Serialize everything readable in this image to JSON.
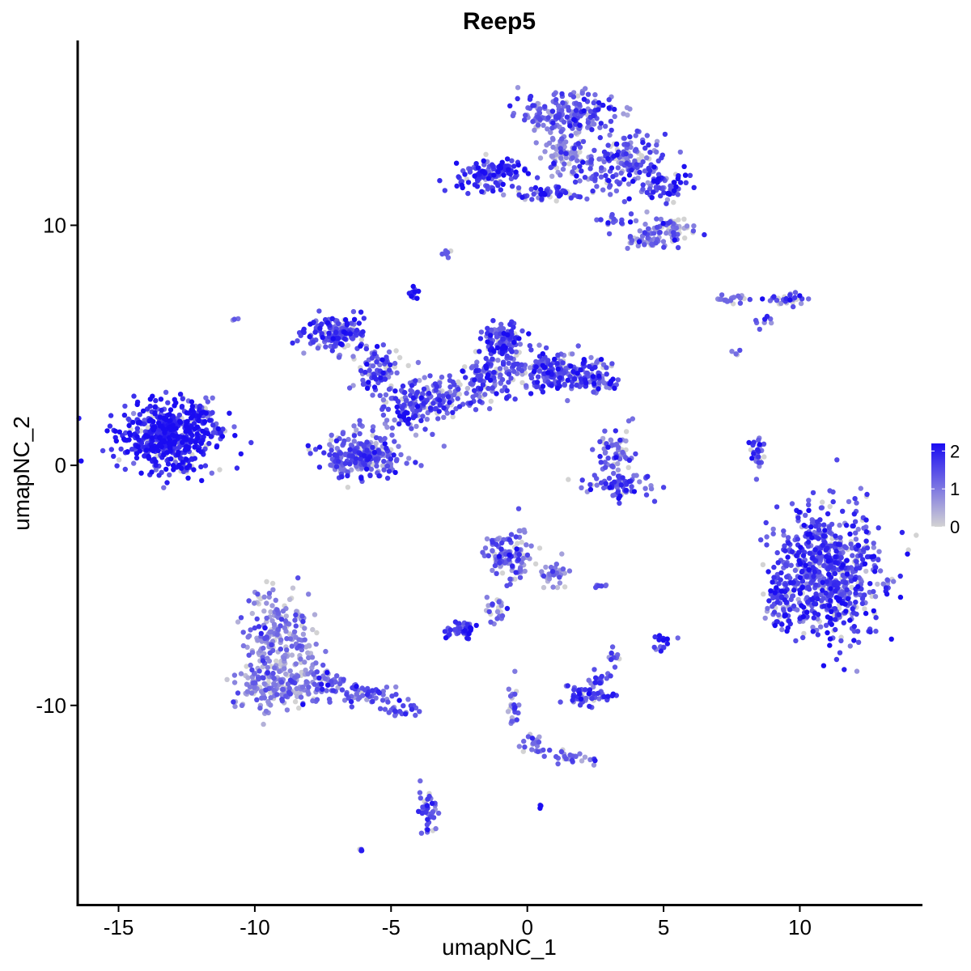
{
  "chart_data": {
    "type": "scatter",
    "title": "Reep5",
    "xlabel": "umapNC_1",
    "ylabel": "umapNC_2",
    "xlim": [
      -16.5,
      14.5
    ],
    "ylim": [
      -18.3,
      17.7
    ],
    "x_ticks": [
      -15,
      -10,
      -5,
      0,
      5,
      10
    ],
    "x_tick_labels": [
      "-15",
      "-10",
      "-5",
      "0",
      "5",
      "10"
    ],
    "y_ticks": [
      -10,
      0,
      10
    ],
    "y_tick_labels": [
      "-10",
      "0",
      "10"
    ],
    "grid": false,
    "legend": {
      "position": "right",
      "type": "colorbar",
      "min": 0,
      "max": 2.2,
      "ticks": [
        0,
        1,
        2
      ],
      "tick_labels": [
        "0",
        "1",
        "2"
      ],
      "color_low": "#d3d3d3",
      "color_high": "#1a0cf2"
    },
    "clusters": [
      {
        "cx": -13.2,
        "cy": 1.2,
        "rx": 1.7,
        "ry": 1.2,
        "n": 520,
        "expr": 1.9
      },
      {
        "cx": -12.0,
        "cy": 2.1,
        "rx": 0.5,
        "ry": 0.6,
        "n": 40,
        "expr": 1.6
      },
      {
        "cx": -11.3,
        "cy": 1.4,
        "rx": 0.4,
        "ry": 0.2,
        "n": 12,
        "expr": 1.5
      },
      {
        "cx": -12.6,
        "cy": -0.1,
        "rx": 0.4,
        "ry": 0.25,
        "n": 14,
        "expr": 1.6
      },
      {
        "cx": -7.0,
        "cy": 5.5,
        "rx": 1.0,
        "ry": 0.7,
        "n": 150,
        "expr": 1.5
      },
      {
        "cx": -5.5,
        "cy": 4.0,
        "rx": 0.8,
        "ry": 0.9,
        "n": 80,
        "expr": 1.4
      },
      {
        "cx": -4.2,
        "cy": 7.2,
        "rx": 0.2,
        "ry": 0.25,
        "n": 15,
        "expr": 1.8
      },
      {
        "cx": -4.5,
        "cy": 2.5,
        "rx": 1.0,
        "ry": 1.0,
        "n": 110,
        "expr": 1.4
      },
      {
        "cx": -6.0,
        "cy": 0.4,
        "rx": 1.4,
        "ry": 0.9,
        "n": 260,
        "expr": 1.3
      },
      {
        "cx": -3.2,
        "cy": 2.8,
        "rx": 1.0,
        "ry": 0.8,
        "n": 90,
        "expr": 1.4
      },
      {
        "cx": -1.5,
        "cy": 3.6,
        "rx": 0.8,
        "ry": 0.9,
        "n": 110,
        "expr": 1.4
      },
      {
        "cx": -0.9,
        "cy": 5.1,
        "rx": 0.7,
        "ry": 0.8,
        "n": 120,
        "expr": 1.6
      },
      {
        "cx": 1.0,
        "cy": 3.9,
        "rx": 1.4,
        "ry": 0.7,
        "n": 180,
        "expr": 1.5
      },
      {
        "cx": 2.6,
        "cy": 3.7,
        "rx": 0.8,
        "ry": 0.55,
        "n": 70,
        "expr": 1.4
      },
      {
        "cx": -1.3,
        "cy": 12.1,
        "rx": 1.3,
        "ry": 0.6,
        "n": 130,
        "expr": 1.7
      },
      {
        "cx": 0.8,
        "cy": 11.3,
        "rx": 1.5,
        "ry": 0.3,
        "n": 50,
        "expr": 1.5
      },
      {
        "cx": 1.5,
        "cy": 14.6,
        "rx": 1.6,
        "ry": 0.9,
        "n": 200,
        "expr": 1.2
      },
      {
        "cx": 1.3,
        "cy": 13.0,
        "rx": 0.6,
        "ry": 0.9,
        "n": 60,
        "expr": 1.0
      },
      {
        "cx": 3.4,
        "cy": 12.6,
        "rx": 1.5,
        "ry": 1.0,
        "n": 180,
        "expr": 1.3
      },
      {
        "cx": 5.2,
        "cy": 11.6,
        "rx": 0.8,
        "ry": 0.6,
        "n": 60,
        "expr": 1.7
      },
      {
        "cx": 5.2,
        "cy": 9.8,
        "rx": 0.9,
        "ry": 0.5,
        "n": 70,
        "expr": 1.1
      },
      {
        "cx": 4.5,
        "cy": 9.3,
        "rx": 0.8,
        "ry": 0.3,
        "n": 30,
        "expr": 1.0
      },
      {
        "cx": 3.2,
        "cy": 10.2,
        "rx": 0.8,
        "ry": 0.2,
        "n": 18,
        "expr": 1.4
      },
      {
        "cx": -2.9,
        "cy": 8.8,
        "rx": 0.15,
        "ry": 0.15,
        "n": 6,
        "expr": 1.4
      },
      {
        "cx": 7.6,
        "cy": 6.9,
        "rx": 0.8,
        "ry": 0.2,
        "n": 20,
        "expr": 1.0
      },
      {
        "cx": 9.5,
        "cy": 6.9,
        "rx": 0.6,
        "ry": 0.3,
        "n": 30,
        "expr": 1.5
      },
      {
        "cx": 8.7,
        "cy": 6.0,
        "rx": 0.3,
        "ry": 0.2,
        "n": 8,
        "expr": 1.0
      },
      {
        "cx": 3.2,
        "cy": 0.5,
        "rx": 0.6,
        "ry": 0.9,
        "n": 60,
        "expr": 1.2
      },
      {
        "cx": 3.3,
        "cy": -0.8,
        "rx": 1.1,
        "ry": 0.5,
        "n": 70,
        "expr": 1.4
      },
      {
        "cx": 8.4,
        "cy": 0.5,
        "rx": 0.3,
        "ry": 0.9,
        "n": 30,
        "expr": 1.5
      },
      {
        "cx": 11.0,
        "cy": -4.5,
        "rx": 1.8,
        "ry": 2.4,
        "n": 700,
        "expr": 1.5
      },
      {
        "cx": 9.3,
        "cy": -5.6,
        "rx": 0.5,
        "ry": 1.0,
        "n": 60,
        "expr": 1.5
      },
      {
        "cx": -9.1,
        "cy": -7.2,
        "rx": 1.1,
        "ry": 1.8,
        "n": 220,
        "expr": 0.9
      },
      {
        "cx": -9.3,
        "cy": -9.3,
        "rx": 1.3,
        "ry": 0.9,
        "n": 170,
        "expr": 0.9
      },
      {
        "cx": -7.4,
        "cy": -9.0,
        "rx": 0.7,
        "ry": 0.6,
        "n": 50,
        "expr": 1.1
      },
      {
        "cx": -6.0,
        "cy": -9.5,
        "rx": 0.9,
        "ry": 0.4,
        "n": 50,
        "expr": 1.4
      },
      {
        "cx": -4.5,
        "cy": -10.2,
        "rx": 0.7,
        "ry": 0.3,
        "n": 25,
        "expr": 1.4
      },
      {
        "cx": -3.6,
        "cy": -14.5,
        "rx": 0.3,
        "ry": 1.0,
        "n": 40,
        "expr": 1.4
      },
      {
        "cx": -0.7,
        "cy": -3.7,
        "rx": 0.8,
        "ry": 0.9,
        "n": 110,
        "expr": 1.1
      },
      {
        "cx": 1.0,
        "cy": -4.6,
        "rx": 0.4,
        "ry": 0.5,
        "n": 30,
        "expr": 1.0
      },
      {
        "cx": -1.1,
        "cy": -6.0,
        "rx": 0.4,
        "ry": 0.6,
        "n": 25,
        "expr": 1.2
      },
      {
        "cx": -2.4,
        "cy": -6.9,
        "rx": 0.5,
        "ry": 0.3,
        "n": 40,
        "expr": 1.6
      },
      {
        "cx": 2.3,
        "cy": -9.6,
        "rx": 0.8,
        "ry": 0.4,
        "n": 55,
        "expr": 1.6
      },
      {
        "cx": 2.6,
        "cy": -8.8,
        "rx": 0.4,
        "ry": 0.4,
        "n": 15,
        "expr": 1.5
      },
      {
        "cx": 3.2,
        "cy": -7.9,
        "rx": 0.3,
        "ry": 0.3,
        "n": 10,
        "expr": 1.3
      },
      {
        "cx": -0.5,
        "cy": -10.0,
        "rx": 0.2,
        "ry": 1.0,
        "n": 25,
        "expr": 1.1
      },
      {
        "cx": 0.2,
        "cy": -11.6,
        "rx": 0.5,
        "ry": 0.4,
        "n": 25,
        "expr": 1.1
      },
      {
        "cx": 1.8,
        "cy": -12.2,
        "rx": 0.9,
        "ry": 0.2,
        "n": 25,
        "expr": 1.1
      },
      {
        "cx": 4.9,
        "cy": -7.4,
        "rx": 0.3,
        "ry": 0.3,
        "n": 18,
        "expr": 1.6
      },
      {
        "cx": 2.8,
        "cy": -5.0,
        "rx": 0.3,
        "ry": 0.1,
        "n": 6,
        "expr": 1.2
      },
      {
        "cx": -6.1,
        "cy": -16.0,
        "rx": 0.1,
        "ry": 0.1,
        "n": 4,
        "expr": 1.6
      },
      {
        "cx": 0.5,
        "cy": -14.2,
        "rx": 0.1,
        "ry": 0.1,
        "n": 4,
        "expr": 1.8
      },
      {
        "cx": -10.7,
        "cy": 6.1,
        "rx": 0.1,
        "ry": 0.1,
        "n": 3,
        "expr": 1.4
      },
      {
        "cx": 7.7,
        "cy": 4.7,
        "rx": 0.2,
        "ry": 0.2,
        "n": 4,
        "expr": 0.6
      }
    ]
  }
}
